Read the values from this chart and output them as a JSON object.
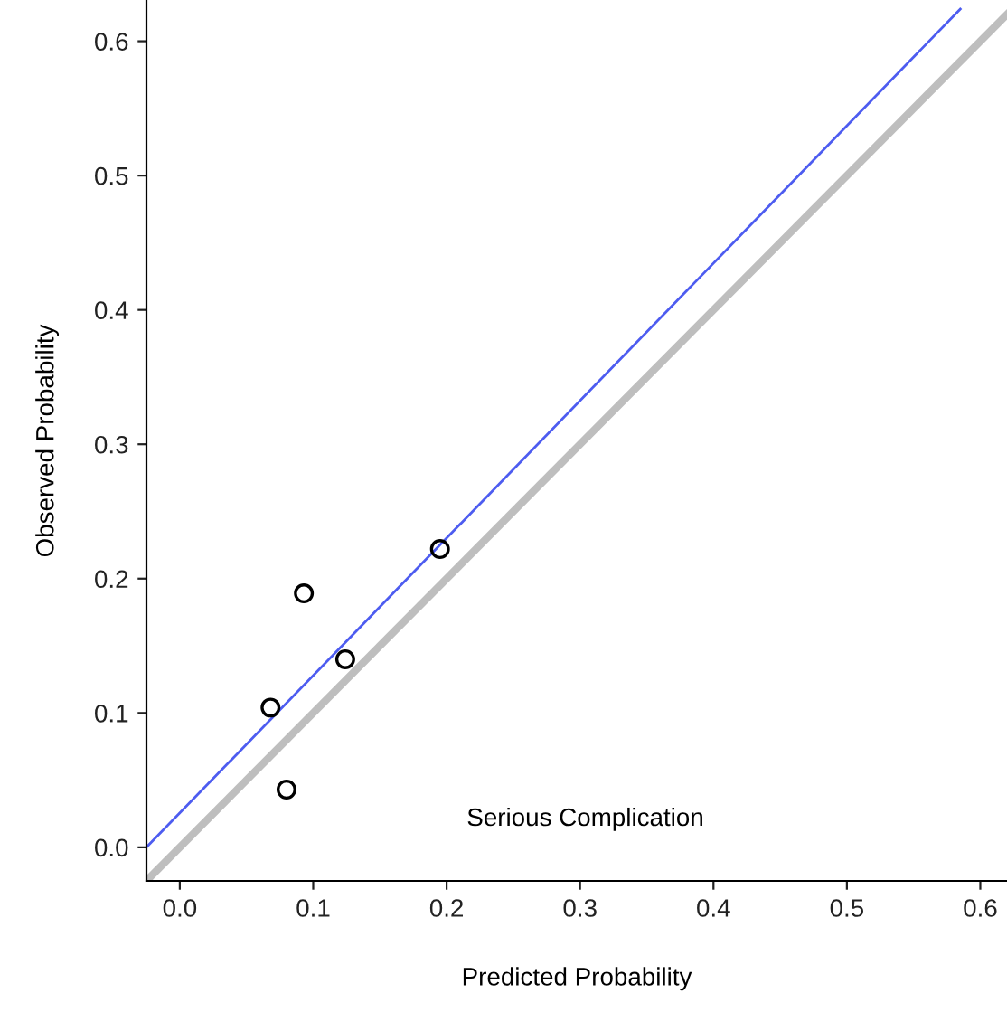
{
  "chart_data": {
    "type": "scatter",
    "xlabel": "Predicted Probability",
    "ylabel": "Observed Probability",
    "annotations": [
      "Serious Complication"
    ],
    "series": [
      {
        "type": "line",
        "color": "#bebebe",
        "x": [
          -0.025,
          0.62
        ],
        "values": [
          -0.025,
          0.62
        ]
      },
      {
        "type": "line",
        "color": "#4d5cf0",
        "x": [
          -0.025,
          0.585
        ],
        "values": [
          0.0,
          0.624
        ]
      },
      {
        "color": "#000000",
        "marker": "circle",
        "x": [
          0.068,
          0.08,
          0.093,
          0.124,
          0.195
        ],
        "values": [
          0.104,
          0.043,
          0.189,
          0.14,
          0.222
        ]
      }
    ],
    "xlim": [
      -0.025,
      0.62
    ],
    "ylim": [
      -0.025,
      0.63
    ],
    "xticks": [
      {
        "value": 0,
        "label": "0.0"
      },
      0.1,
      0.2,
      0.3,
      0.4,
      0.5,
      0.6
    ],
    "yticks": [
      {
        "value": 0,
        "label": "0.0"
      },
      0.1,
      0.2,
      0.3,
      0.4,
      0.5,
      0.6
    ],
    "grid": false,
    "legend": false
  }
}
